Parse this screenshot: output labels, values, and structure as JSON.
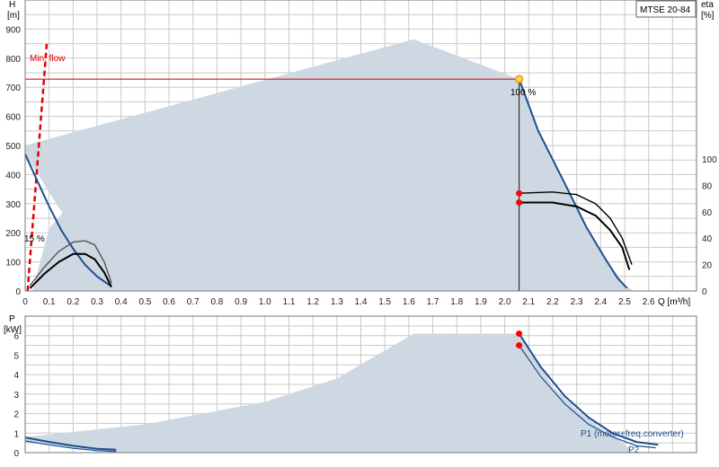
{
  "model_label": "MTSE 20-84",
  "chart_data": [
    {
      "type": "line",
      "id": "head",
      "y_label_line1": "H",
      "y_label_line2": "[m]",
      "y2_label_line1": "eta",
      "y2_label_line2": "[%]",
      "x_label": "Q [m³/h]",
      "xlim": [
        0,
        2.8
      ],
      "ylim": [
        0,
        1000
      ],
      "y2lim": [
        0,
        100
      ],
      "x_ticks": [
        "0",
        "0.1",
        "0.2",
        "0.3",
        "0.4",
        "0.5",
        "0.6",
        "0.7",
        "0.8",
        "0.9",
        "1.0",
        "1.1",
        "1.2",
        "1.3",
        "1.4",
        "1.5",
        "1.6",
        "1.7",
        "1.8",
        "1.9",
        "2.0",
        "2.1",
        "2.2",
        "2.3",
        "2.4",
        "2.5",
        "2.6"
      ],
      "y_ticks": [
        "0",
        "100",
        "200",
        "300",
        "400",
        "500",
        "600",
        "700",
        "800",
        "900"
      ],
      "y2_ticks": [
        "0",
        "20",
        "40",
        "60",
        "80",
        "100"
      ],
      "min_flow_label": "Min. flow",
      "min_flow_line": [
        [
          0.01,
          0
        ],
        [
          0.09,
          850
        ]
      ],
      "operating_point": {
        "q": 2.06,
        "h": 728
      },
      "speed_labels": [
        "100 %",
        "15 %"
      ],
      "envelope": [
        [
          0,
          470
        ],
        [
          0,
          500
        ],
        [
          1.62,
          865
        ],
        [
          2.06,
          728
        ],
        [
          2.14,
          550
        ],
        [
          2.25,
          370
        ],
        [
          2.34,
          220
        ],
        [
          2.42,
          110
        ],
        [
          2.5,
          20
        ],
        [
          2.54,
          0
        ],
        [
          0.03,
          0
        ],
        [
          0.1,
          215
        ],
        [
          0.2,
          310
        ],
        [
          0.3,
          375
        ],
        [
          0.36,
          400
        ],
        [
          0.36,
          0
        ]
      ],
      "series": [
        {
          "role": "head-full",
          "color": "#1f4e8c",
          "points": [
            [
              2.06,
              728
            ],
            [
              2.14,
              550
            ],
            [
              2.25,
              370
            ],
            [
              2.34,
              220
            ],
            [
              2.42,
              110
            ],
            [
              2.47,
              45
            ],
            [
              2.51,
              10
            ]
          ]
        },
        {
          "role": "head-min",
          "color": "#1f4e8c",
          "points": [
            [
              0,
              470
            ],
            [
              0.05,
              380
            ],
            [
              0.1,
              290
            ],
            [
              0.15,
              210
            ],
            [
              0.2,
              145
            ],
            [
              0.25,
              90
            ],
            [
              0.3,
              50
            ],
            [
              0.36,
              15
            ]
          ]
        },
        {
          "role": "eta-full-a",
          "axis": "y2",
          "color": "#000000",
          "points": [
            [
              2.06,
              74
            ],
            [
              2.2,
              75
            ],
            [
              2.3,
              73
            ],
            [
              2.38,
              66
            ],
            [
              2.44,
              55
            ],
            [
              2.49,
              40
            ],
            [
              2.53,
              20
            ]
          ]
        },
        {
          "role": "eta-full-b",
          "axis": "y2",
          "color": "#000000",
          "points": [
            [
              2.06,
              67
            ],
            [
              2.2,
              67
            ],
            [
              2.3,
              64
            ],
            [
              2.38,
              57
            ],
            [
              2.44,
              46
            ],
            [
              2.49,
              33
            ],
            [
              2.52,
              16
            ]
          ]
        },
        {
          "role": "eta-min-a",
          "axis": "y2",
          "color": "#555555",
          "points": [
            [
              0.02,
              4
            ],
            [
              0.08,
              18
            ],
            [
              0.14,
              30
            ],
            [
              0.2,
              37
            ],
            [
              0.25,
              38
            ],
            [
              0.29,
              35
            ],
            [
              0.33,
              22
            ],
            [
              0.36,
              6
            ]
          ]
        },
        {
          "role": "eta-min-b",
          "axis": "y2",
          "color": "#000000",
          "points": [
            [
              0.02,
              2
            ],
            [
              0.08,
              13
            ],
            [
              0.14,
              22
            ],
            [
              0.2,
              28
            ],
            [
              0.25,
              28
            ],
            [
              0.29,
              24
            ],
            [
              0.33,
              14
            ],
            [
              0.36,
              3
            ]
          ]
        }
      ],
      "markers": [
        {
          "q": 2.06,
          "v": 728,
          "axis": "y",
          "style": "open-orange"
        },
        {
          "q": 2.06,
          "v": 74,
          "axis": "y2",
          "style": "red"
        },
        {
          "q": 2.06,
          "v": 67,
          "axis": "y2",
          "style": "red"
        }
      ]
    },
    {
      "type": "line",
      "id": "power",
      "y_label_line1": "P",
      "y_label_line2": "[kW]",
      "xlim": [
        0,
        2.8
      ],
      "ylim": [
        0,
        7
      ],
      "y_ticks": [
        "0",
        "1",
        "2",
        "3",
        "4",
        "5",
        "6"
      ],
      "p1_label": "P1 (motor+freq.converter)",
      "p2_label": "P2",
      "envelope": [
        [
          0,
          0.8
        ],
        [
          0.5,
          1.45
        ],
        [
          1.0,
          2.6
        ],
        [
          1.3,
          3.8
        ],
        [
          1.62,
          6.1
        ],
        [
          2.06,
          6.1
        ],
        [
          2.2,
          3.4
        ],
        [
          2.3,
          2.2
        ],
        [
          2.4,
          1.25
        ],
        [
          2.48,
          0.65
        ],
        [
          2.54,
          0.0
        ],
        [
          0.38,
          0.0
        ],
        [
          0.25,
          0.15
        ],
        [
          0.1,
          0.4
        ],
        [
          0,
          0.55
        ]
      ],
      "series": [
        {
          "role": "p1-full",
          "color": "#1f4e8c",
          "points": [
            [
              2.06,
              6.1
            ],
            [
              2.15,
              4.4
            ],
            [
              2.25,
              2.9
            ],
            [
              2.35,
              1.8
            ],
            [
              2.45,
              1.0
            ],
            [
              2.55,
              0.55
            ],
            [
              2.64,
              0.4
            ]
          ]
        },
        {
          "role": "p2-full",
          "color": "#1f4e8c",
          "points": [
            [
              2.06,
              5.5
            ],
            [
              2.15,
              3.9
            ],
            [
              2.25,
              2.5
            ],
            [
              2.35,
              1.45
            ],
            [
              2.45,
              0.8
            ],
            [
              2.55,
              0.35
            ],
            [
              2.63,
              0.25
            ]
          ]
        },
        {
          "role": "p1-min",
          "color": "#1f4e8c",
          "points": [
            [
              0,
              0.78
            ],
            [
              0.1,
              0.55
            ],
            [
              0.2,
              0.35
            ],
            [
              0.3,
              0.2
            ],
            [
              0.38,
              0.15
            ]
          ]
        },
        {
          "role": "p2-min",
          "color": "#1f4e8c",
          "points": [
            [
              0,
              0.6
            ],
            [
              0.1,
              0.4
            ],
            [
              0.2,
              0.22
            ],
            [
              0.3,
              0.1
            ],
            [
              0.38,
              0.06
            ]
          ]
        }
      ],
      "markers": [
        {
          "q": 2.06,
          "v": 6.1,
          "style": "red"
        },
        {
          "q": 2.06,
          "v": 5.5,
          "style": "red"
        }
      ]
    }
  ]
}
